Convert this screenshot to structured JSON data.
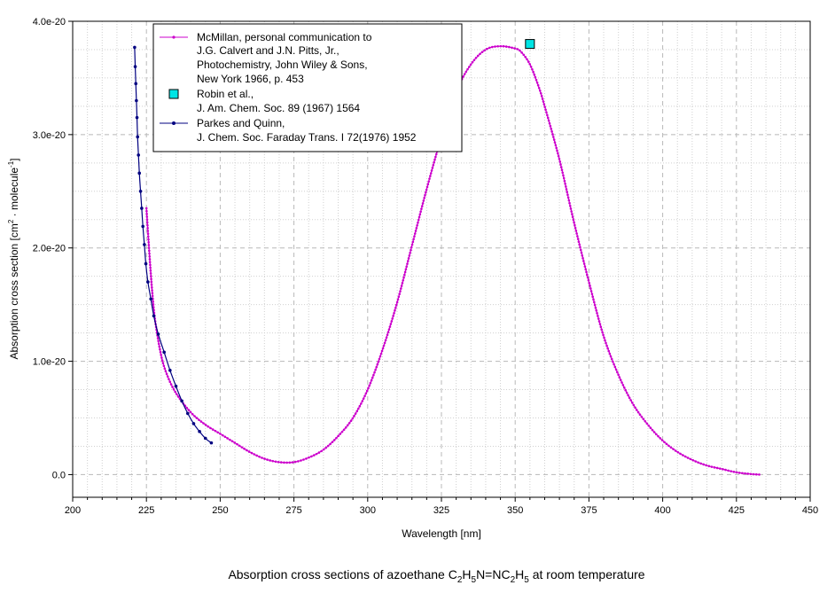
{
  "chart_data": {
    "type": "line",
    "title": "Absorption cross sections of azoethane C2H5N=NC2H5 at room temperature",
    "caption": {
      "prefix": "Absorption cross sections of azoethane C",
      "sub1": "2",
      "t1": "H",
      "sub2": "5",
      "t2": "N=NC",
      "sub3": "2",
      "t3": "H",
      "sub4": "5",
      "suffix": " at room temperature"
    },
    "xlabel": "Wavelength [nm]",
    "ylabel_parts": {
      "a": "Absorption cross section [cm",
      "sup1": "2",
      "b": " · molecule",
      "sup2": "-1",
      "c": "]"
    },
    "xlim": [
      200,
      450
    ],
    "ylim": [
      -2e-21,
      4e-20
    ],
    "x_ticks": [
      200,
      225,
      250,
      275,
      300,
      325,
      350,
      375,
      400,
      425,
      450
    ],
    "x_tick_labels": [
      "200",
      "225",
      "250",
      "275",
      "300",
      "325",
      "350",
      "375",
      "400",
      "425",
      "450"
    ],
    "y_ticks": [
      0,
      1e-20,
      2e-20,
      3e-20,
      4e-20
    ],
    "y_tick_labels": [
      "0.0",
      "1.0e-20",
      "2.0e-20",
      "3.0e-20",
      "4.0e-20"
    ],
    "grid": true,
    "legend_position": "top-left",
    "series": [
      {
        "name": "McMillan, personal communication to J.G. Calvert and J.N. Pitts, Jr., Photochemistry, John Wiley & Sons, New York 1966, p. 453",
        "legend_lines": [
          "McMillan, personal communication to",
          "J.G. Calvert and J.N. Pitts, Jr.,",
          "Photochemistry, John Wiley & Sons,",
          "New York 1966, p. 453"
        ],
        "color": "#cc00cc",
        "marker": "dot",
        "x": [
          225,
          226,
          227,
          228,
          230,
          232,
          235,
          240,
          245,
          250,
          255,
          260,
          265,
          270,
          275,
          280,
          285,
          290,
          295,
          300,
          305,
          310,
          315,
          320,
          325,
          330,
          335,
          340,
          345,
          350,
          352,
          355,
          358,
          360,
          365,
          370,
          375,
          380,
          385,
          390,
          395,
          400,
          405,
          410,
          415,
          420,
          425,
          430,
          433
        ],
        "y": [
          2.35e-20,
          1.95e-20,
          1.6e-20,
          1.35e-20,
          1.05e-20,
          8.8e-21,
          7.2e-21,
          5.5e-21,
          4.4e-21,
          3.6e-21,
          2.8e-21,
          2e-21,
          1.4e-21,
          1.1e-21,
          1.1e-21,
          1.5e-21,
          2.2e-21,
          3.4e-21,
          5e-21,
          7.5e-21,
          1.1e-20,
          1.52e-20,
          2.02e-20,
          2.52e-20,
          2.98e-20,
          3.38e-20,
          3.62e-20,
          3.75e-20,
          3.78e-20,
          3.76e-20,
          3.73e-20,
          3.62e-20,
          3.42e-20,
          3.25e-20,
          2.78e-20,
          2.22e-20,
          1.7e-20,
          1.22e-20,
          8.8e-21,
          6.2e-21,
          4.4e-21,
          3e-21,
          2e-21,
          1.3e-21,
          8e-22,
          5e-22,
          2e-22,
          5e-23,
          0.0
        ]
      },
      {
        "name": "Robin et al., J. Am. Chem. Soc. 89 (1967) 1564",
        "legend_lines": [
          "Robin et al.,",
          "J. Am. Chem. Soc. 89 (1967) 1564"
        ],
        "color": "#00e5e5",
        "marker": "square",
        "x": [
          355
        ],
        "y": [
          3.8e-20
        ]
      },
      {
        "name": "Parkes and Quinn, J. Chem. Soc. Faraday Trans. I 72(1976) 1952",
        "legend_lines": [
          "Parkes and Quinn,",
          "J. Chem. Soc. Faraday Trans. I 72(1976) 1952"
        ],
        "color": "#000080",
        "marker": "dot",
        "x": [
          221.0,
          221.2,
          221.4,
          221.6,
          221.8,
          222.0,
          222.3,
          222.6,
          223.0,
          223.4,
          223.8,
          224.3,
          224.8,
          225.5,
          226.5,
          227.5,
          229,
          231,
          233,
          235,
          237,
          239,
          241,
          243,
          245,
          247
        ],
        "y": [
          3.77e-20,
          3.6e-20,
          3.45e-20,
          3.3e-20,
          3.15e-20,
          2.98e-20,
          2.82e-20,
          2.66e-20,
          2.5e-20,
          2.35e-20,
          2.19e-20,
          2.03e-20,
          1.86e-20,
          1.7e-20,
          1.55e-20,
          1.4e-20,
          1.24e-20,
          1.08e-20,
          9.2e-21,
          7.8e-21,
          6.5e-21,
          5.4e-21,
          4.5e-21,
          3.8e-21,
          3.2e-21,
          2.8e-21
        ]
      }
    ]
  }
}
